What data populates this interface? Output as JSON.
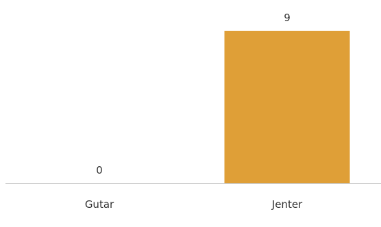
{
  "chart_data": {
    "type": "bar",
    "categories": [
      "Gutar",
      "Jenter"
    ],
    "values": [
      0,
      9
    ],
    "data_labels": [
      "0",
      "9"
    ],
    "ylim": [
      0,
      9
    ],
    "grid": false,
    "bar_color": "#DF9F37",
    "axis_color": "#cccccc"
  }
}
